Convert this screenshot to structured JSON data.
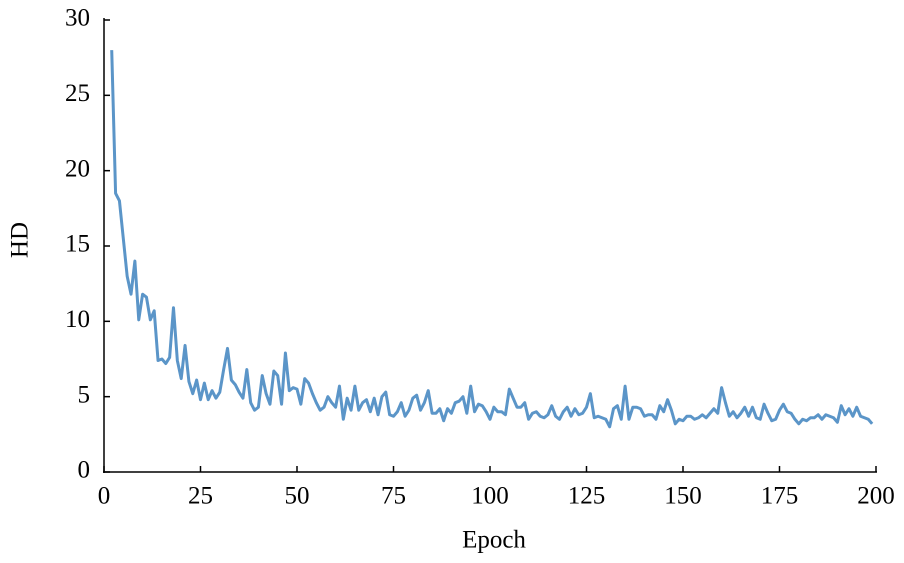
{
  "chart_data": {
    "type": "line",
    "xlabel": "Epoch",
    "ylabel": "HD",
    "color": "#5b95c8",
    "x": [
      2,
      3,
      4,
      5,
      6,
      7,
      8,
      9,
      10,
      11,
      12,
      13,
      14,
      15,
      16,
      17,
      18,
      19,
      20,
      21,
      22,
      23,
      24,
      25,
      26,
      27,
      28,
      29,
      30,
      31,
      32,
      33,
      34,
      35,
      36,
      37,
      38,
      39,
      40,
      41,
      42,
      43,
      44,
      45,
      46,
      47,
      48,
      49,
      50,
      51,
      52,
      53,
      54,
      55,
      56,
      57,
      58,
      59,
      60,
      61,
      62,
      63,
      64,
      65,
      66,
      67,
      68,
      69,
      70,
      71,
      72,
      73,
      74,
      75,
      76,
      77,
      78,
      79,
      80,
      81,
      82,
      83,
      84,
      85,
      86,
      87,
      88,
      89,
      90,
      91,
      92,
      93,
      94,
      95,
      96,
      97,
      98,
      99,
      100,
      101,
      102,
      103,
      104,
      105,
      106,
      107,
      108,
      109,
      110,
      111,
      112,
      113,
      114,
      115,
      116,
      117,
      118,
      119,
      120,
      121,
      122,
      123,
      124,
      125,
      126,
      127,
      128,
      129,
      130,
      131,
      132,
      133,
      134,
      135,
      136,
      137,
      138,
      139,
      140,
      141,
      142,
      143,
      144,
      145,
      146,
      147,
      148,
      149,
      150,
      151,
      152,
      153,
      154,
      155,
      156,
      157,
      158,
      159,
      160,
      161,
      162,
      163,
      164,
      165,
      166,
      167,
      168,
      169,
      170,
      171,
      172,
      173,
      174,
      175,
      176,
      177,
      178,
      179,
      180,
      181,
      182,
      183,
      184,
      185,
      186,
      187,
      188,
      189,
      190,
      191,
      192,
      193,
      194,
      195,
      196,
      197,
      198,
      199
    ],
    "values": [
      28,
      18.5,
      18,
      15.5,
      13,
      11.8,
      14,
      10.1,
      11.8,
      11.6,
      10.1,
      10.7,
      7.4,
      7.5,
      7.2,
      7.6,
      10.9,
      7.4,
      6.2,
      8.4,
      6.0,
      5.2,
      6.1,
      4.8,
      5.9,
      4.8,
      5.4,
      4.9,
      5.3,
      6.8,
      8.2,
      6.1,
      5.8,
      5.3,
      4.9,
      6.8,
      4.6,
      4.1,
      4.3,
      6.4,
      5.2,
      4.5,
      6.7,
      6.4,
      4.5,
      7.9,
      5.4,
      5.6,
      5.5,
      4.5,
      6.2,
      5.9,
      5.2,
      4.6,
      4.1,
      4.3,
      5.0,
      4.6,
      4.3,
      5.7,
      3.5,
      4.9,
      4.1,
      5.7,
      4.1,
      4.6,
      4.8,
      4.0,
      4.9,
      3.8,
      5.0,
      5.3,
      3.8,
      3.7,
      4.0,
      4.6,
      3.7,
      4.1,
      4.9,
      5.1,
      4.1,
      4.6,
      5.4,
      3.9,
      3.9,
      4.2,
      3.4,
      4.2,
      3.9,
      4.6,
      4.7,
      5.0,
      3.9,
      5.7,
      4.0,
      4.5,
      4.4,
      4.0,
      3.5,
      4.3,
      4.0,
      4.0,
      3.8,
      5.5,
      4.9,
      4.3,
      4.3,
      4.6,
      3.5,
      3.9,
      4.0,
      3.7,
      3.6,
      3.8,
      4.4,
      3.7,
      3.5,
      4.0,
      4.3,
      3.7,
      4.2,
      3.8,
      3.9,
      4.3,
      5.2,
      3.6,
      3.7,
      3.6,
      3.5,
      3.0,
      4.2,
      4.4,
      3.5,
      5.7,
      3.5,
      4.3,
      4.3,
      4.2,
      3.7,
      3.8,
      3.8,
      3.5,
      4.4,
      4.0,
      4.8,
      4.1,
      3.2,
      3.5,
      3.4,
      3.7,
      3.7,
      3.5,
      3.6,
      3.8,
      3.6,
      3.9,
      4.2,
      3.9,
      5.6,
      4.6,
      3.7,
      4.0,
      3.6,
      3.9,
      4.3,
      3.7,
      4.3,
      3.6,
      3.5,
      4.5,
      3.9,
      3.4,
      3.5,
      4.1,
      4.5,
      4.0,
      3.9,
      3.5,
      3.2,
      3.5,
      3.4,
      3.6,
      3.6,
      3.8,
      3.5,
      3.8,
      3.7,
      3.6,
      3.3,
      4.4,
      3.8,
      4.2,
      3.7,
      4.3,
      3.7,
      3.6,
      3.5,
      3.2
    ],
    "xlim": [
      0,
      200
    ],
    "xticks": [
      0,
      25,
      50,
      75,
      100,
      125,
      150,
      175,
      200
    ],
    "ylim": [
      0,
      30
    ],
    "yticks": [
      0,
      5,
      10,
      15,
      20,
      25,
      30
    ]
  }
}
